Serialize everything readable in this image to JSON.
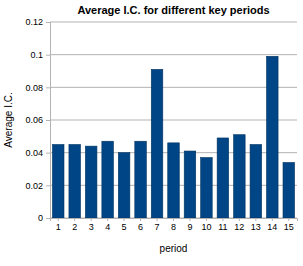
{
  "chart_data": {
    "type": "bar",
    "title": "Average I.C. for different key periods",
    "x_label": "period",
    "y_label": "Average I.C.",
    "categories": [
      "1",
      "2",
      "3",
      "4",
      "5",
      "6",
      "7",
      "8",
      "9",
      "10",
      "11",
      "12",
      "13",
      "14",
      "15"
    ],
    "values": [
      0.045,
      0.045,
      0.044,
      0.047,
      0.04,
      0.047,
      0.091,
      0.046,
      0.041,
      0.037,
      0.049,
      0.051,
      0.045,
      0.099,
      0.034
    ],
    "color": "#004586",
    "ylim": [
      0,
      0.12
    ],
    "yticks": [
      0,
      0.02,
      0.04,
      0.06,
      0.08,
      0.1,
      0.12
    ],
    "grid": true
  }
}
